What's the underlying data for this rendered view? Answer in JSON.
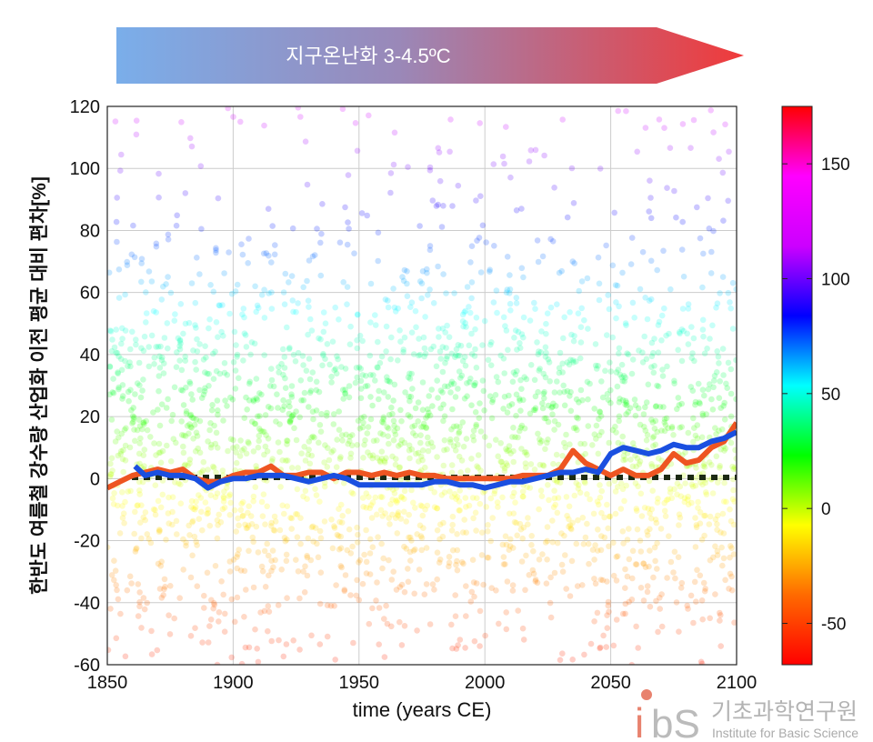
{
  "banner": {
    "label": "지구온난화 3-4.5ºC",
    "color_start": "#7aaeea",
    "color_end": "#f03a3a"
  },
  "logo": {
    "mark": "ibs",
    "korean": "기초과학연구원",
    "english": "Institute for Basic Science",
    "accent": "#e8826e"
  },
  "chart_data": {
    "type": "line",
    "title": "",
    "xlabel": "time (years CE)",
    "ylabel": "한반도 여름철 강수량 산업화 이전 평균 대비 편차[%]",
    "xlim": [
      1850,
      2100
    ],
    "ylim": [
      -60,
      120
    ],
    "xticks": [
      "1850",
      "1900",
      "1950",
      "2000",
      "2050",
      "2100"
    ],
    "yticks": [
      "120",
      "100",
      "80",
      "60",
      "40",
      "20",
      "0",
      "-20",
      "-40",
      "-60"
    ],
    "grid": true,
    "reference_line": {
      "y": 0,
      "style": "dotted",
      "color": "#1c2a14"
    },
    "series": [
      {
        "color": "#ee5522",
        "x": [
          1850,
          1855,
          1860,
          1865,
          1870,
          1875,
          1880,
          1885,
          1890,
          1895,
          1900,
          1905,
          1910,
          1915,
          1920,
          1925,
          1930,
          1935,
          1940,
          1945,
          1950,
          1955,
          1960,
          1965,
          1970,
          1975,
          1980,
          1985,
          1990,
          1995,
          2000,
          2005,
          2010,
          2015,
          2020,
          2025,
          2030,
          2035,
          2040,
          2045,
          2050,
          2055,
          2060,
          2065,
          2070,
          2075,
          2080,
          2085,
          2090,
          2095,
          2100
        ],
        "y": [
          -3,
          -1,
          1,
          2,
          3,
          2,
          3,
          0,
          -1,
          -1,
          1,
          2,
          2,
          4,
          1,
          1,
          2,
          2,
          0,
          2,
          2,
          1,
          2,
          1,
          2,
          1,
          1,
          0,
          0,
          0,
          0,
          0,
          0,
          1,
          1,
          1,
          3,
          9,
          5,
          3,
          1,
          3,
          1,
          1,
          3,
          8,
          5,
          6,
          10,
          12,
          18
        ]
      },
      {
        "color": "#1a4fe0",
        "x": [
          1861,
          1865,
          1870,
          1875,
          1880,
          1885,
          1890,
          1895,
          1900,
          1905,
          1910,
          1915,
          1920,
          1925,
          1930,
          1935,
          1940,
          1945,
          1950,
          1955,
          1960,
          1965,
          1970,
          1975,
          1980,
          1985,
          1990,
          1995,
          2000,
          2005,
          2010,
          2015,
          2020,
          2025,
          2030,
          2035,
          2040,
          2045,
          2050,
          2055,
          2060,
          2065,
          2070,
          2075,
          2080,
          2085,
          2090,
          2095,
          2100
        ],
        "y": [
          4,
          1,
          2,
          1,
          1,
          0,
          -3,
          -1,
          0,
          0,
          1,
          1,
          1,
          0,
          -1,
          0,
          1,
          0,
          -2,
          -2,
          -2,
          -2,
          -2,
          -2,
          -1,
          -1,
          -2,
          -2,
          -3,
          -2,
          -1,
          -1,
          0,
          1,
          2,
          2,
          3,
          2,
          8,
          10,
          9,
          8,
          9,
          11,
          10,
          10,
          12,
          13,
          15
        ]
      }
    ],
    "scatter": {
      "description_color_scale": "colorbar",
      "count_approx": 2600
    },
    "colorbar": {
      "ticks": [
        "150",
        "100",
        "50",
        "0",
        "-50"
      ],
      "range": [
        -68,
        175
      ],
      "colormap": [
        "#ff0000",
        "#ff6a00",
        "#ffff00",
        "#00ff00",
        "#00ffff",
        "#0000ff",
        "#cc00ff",
        "#ff00ff",
        "#ff0000"
      ]
    }
  }
}
